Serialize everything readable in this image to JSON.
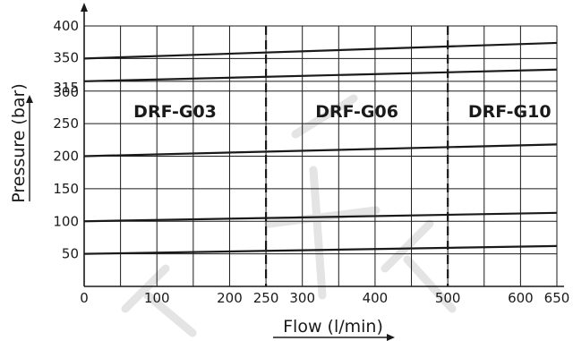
{
  "chart_data": {
    "type": "line",
    "xlabel": "Flow (l/min)",
    "ylabel": "Pressure (bar)",
    "xlim": [
      0,
      650
    ],
    "ylim": [
      0,
      400
    ],
    "x_ticks": [
      0,
      100,
      200,
      250,
      300,
      400,
      500,
      600,
      650
    ],
    "y_ticks": [
      50,
      100,
      150,
      200,
      250,
      300,
      315,
      350,
      400
    ],
    "x_grid": [
      0,
      50,
      100,
      150,
      200,
      250,
      300,
      350,
      400,
      450,
      500,
      550,
      600,
      650
    ],
    "y_grid": [
      0,
      50,
      100,
      150,
      200,
      250,
      300,
      315,
      350,
      400
    ],
    "grid": true,
    "series": [
      {
        "x": [
          0,
          650
        ],
        "y": [
          350,
          374
        ]
      },
      {
        "x": [
          0,
          650
        ],
        "y": [
          315,
          333
        ]
      },
      {
        "x": [
          0,
          650
        ],
        "y": [
          200,
          218
        ]
      },
      {
        "x": [
          0,
          650
        ],
        "y": [
          100,
          113
        ]
      },
      {
        "x": [
          0,
          650
        ],
        "y": [
          50,
          62
        ]
      }
    ],
    "dividers": [
      250,
      500
    ],
    "zones": [
      {
        "label": "DRF-G03",
        "x_center": 125
      },
      {
        "label": "DRF-G06",
        "x_center": 375
      },
      {
        "label": "DRF-G10",
        "x_center": 585
      }
    ]
  }
}
